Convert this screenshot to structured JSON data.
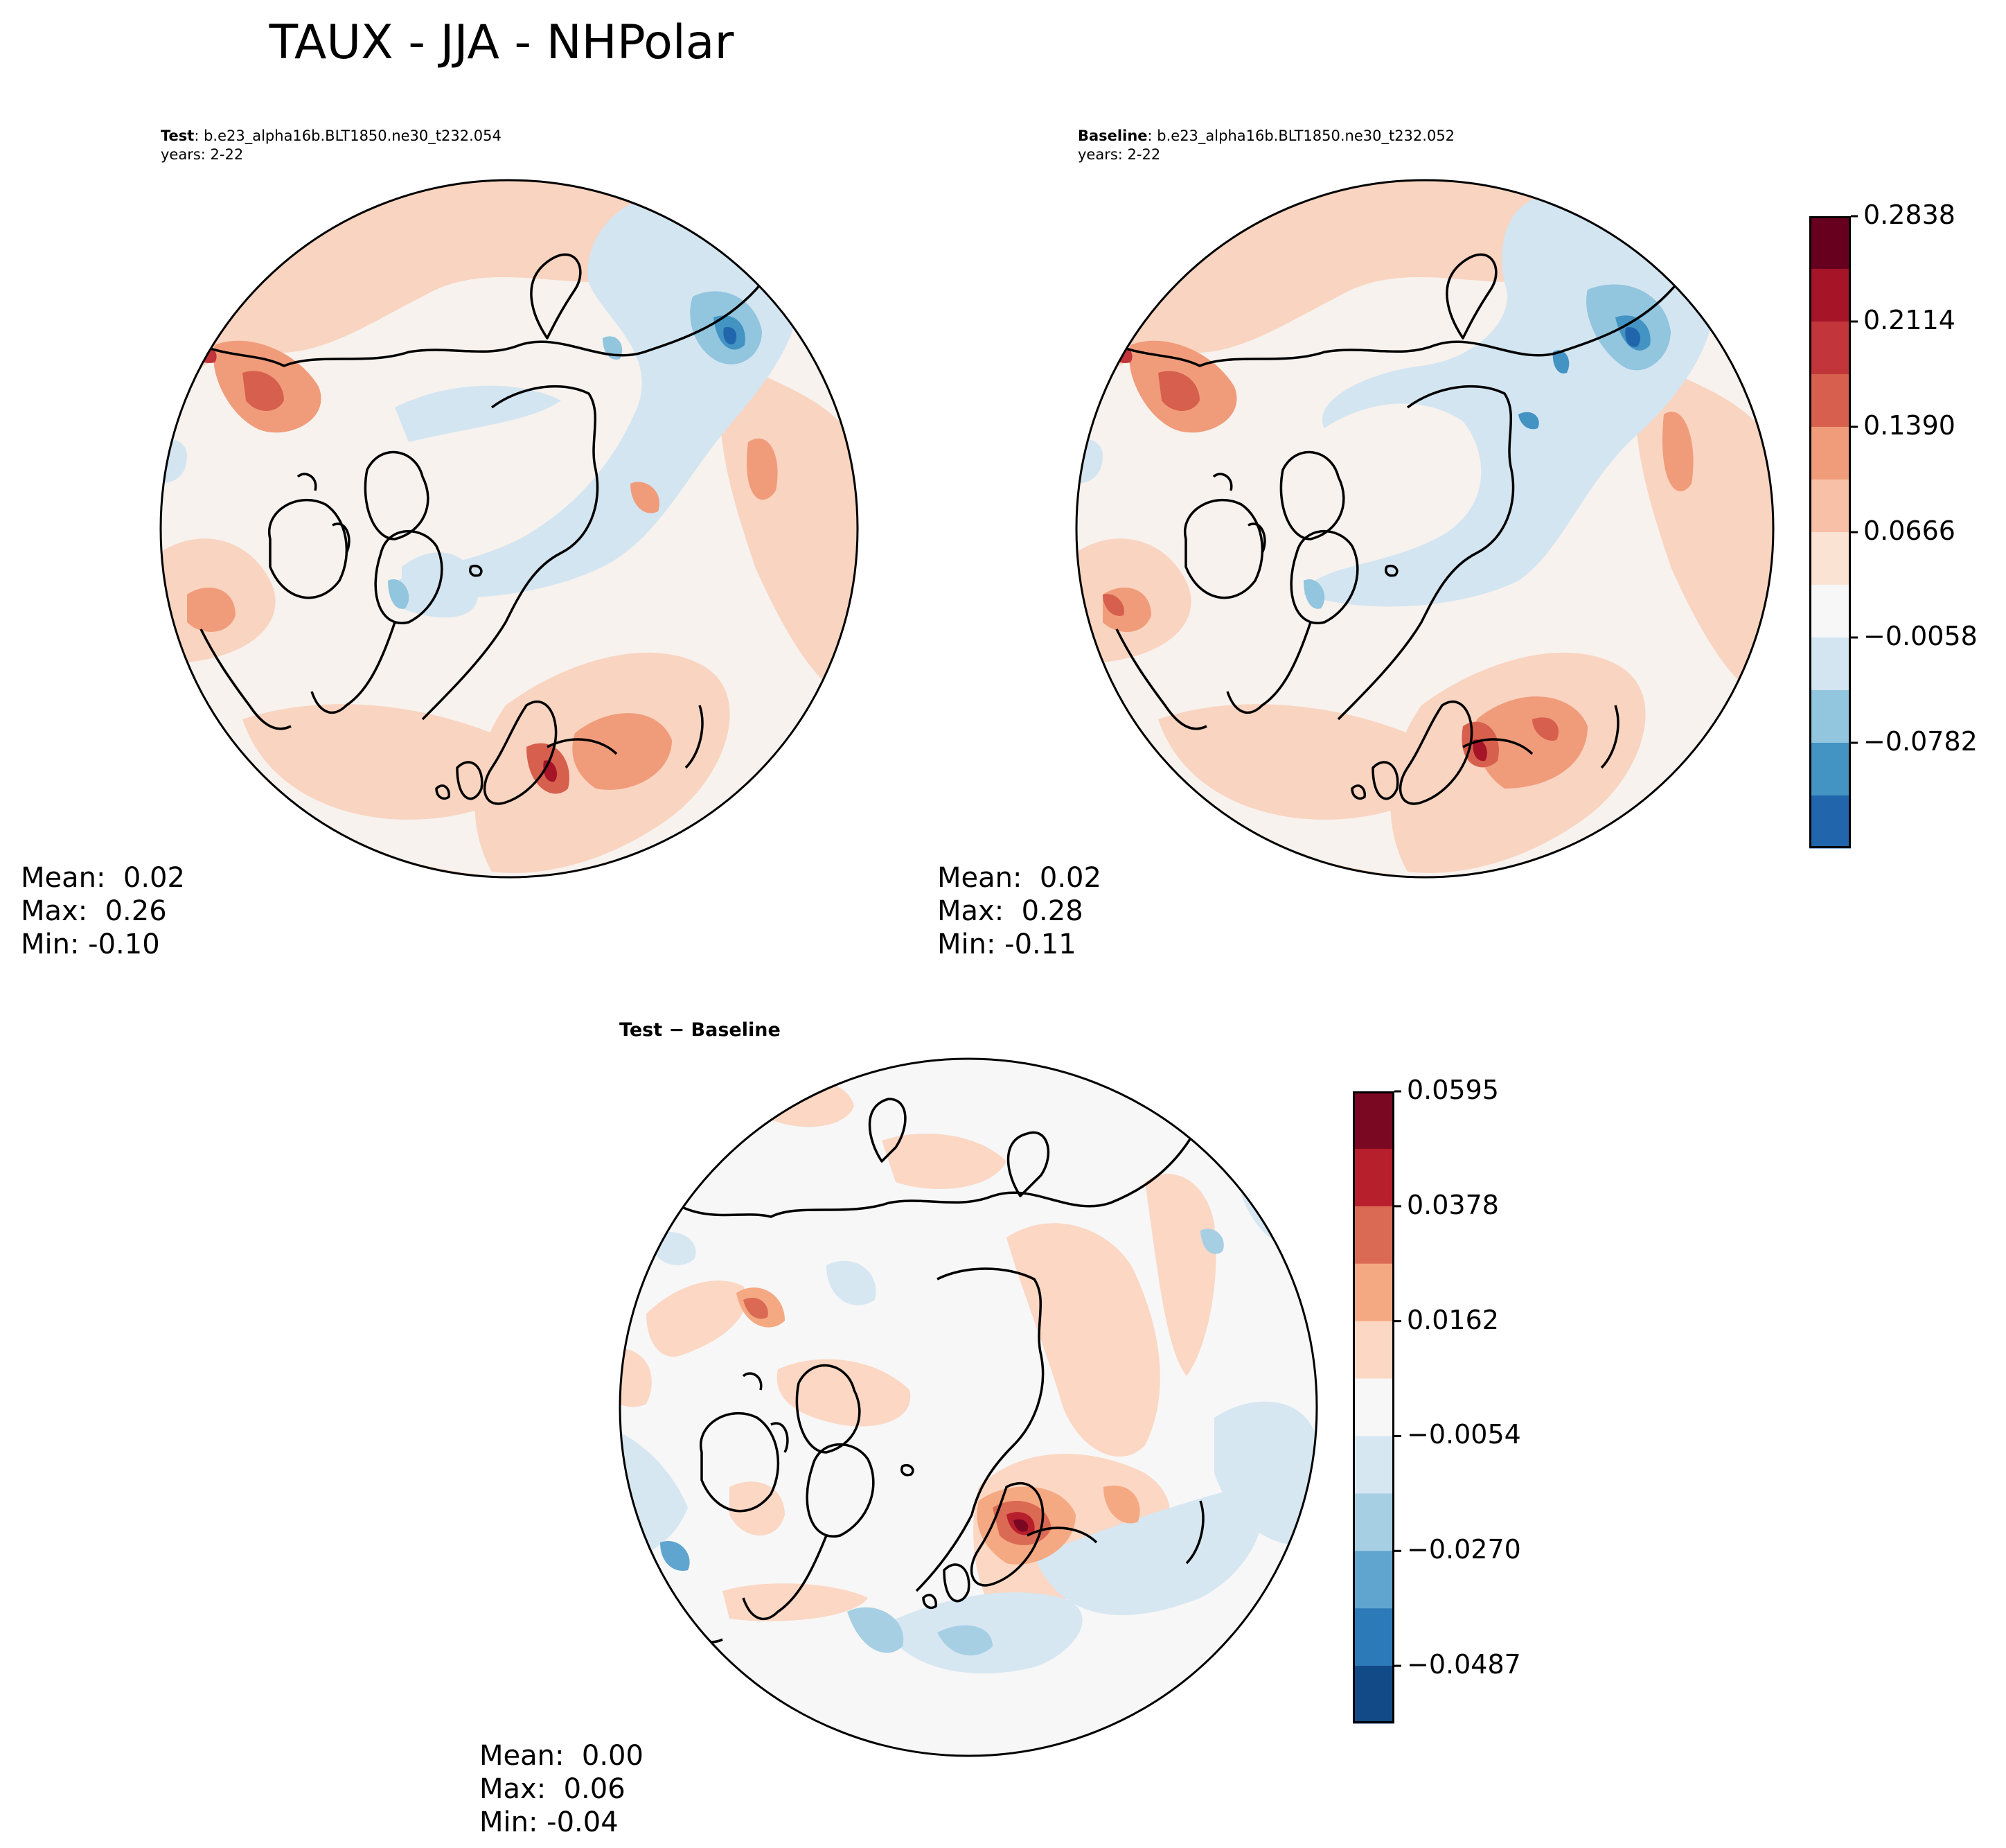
{
  "title": "TAUX - JJA - NHPolar",
  "panels": {
    "test": {
      "label": "Test",
      "case": ": b.e23_alpha16b.BLT1850.ne30_t232.054",
      "years": "years: 2-22",
      "mean": "Mean:  0.02",
      "max": "Max:  0.26",
      "min": "Min: -0.10"
    },
    "baseline": {
      "label": "Baseline",
      "case": ": b.e23_alpha16b.BLT1850.ne30_t232.052",
      "years": "years: 2-22",
      "mean": "Mean:  0.02",
      "max": "Max:  0.28",
      "min": "Min: -0.11"
    },
    "diff": {
      "label": "Test − Baseline",
      "mean": "Mean:  0.00",
      "max": "Max:  0.06",
      "min": "Min: -0.04"
    }
  },
  "colorbar_main": {
    "ticks": [
      "0.2838",
      "0.2114",
      "0.1390",
      "0.0666",
      "−0.0058",
      "−0.0782"
    ],
    "colors": [
      "#67001f",
      "#a51427",
      "#c1353b",
      "#d6604d",
      "#f09c7b",
      "#f8c0a6",
      "#fbe3d4",
      "#f7f7f7",
      "#d3e5f1",
      "#92c5de",
      "#4393c3",
      "#2166ac"
    ]
  },
  "colorbar_diff": {
    "ticks": [
      "0.0595",
      "0.0378",
      "0.0162",
      "−0.0054",
      "−0.0270",
      "−0.0487"
    ],
    "colors": [
      "#7a0822",
      "#b81f2c",
      "#db6a55",
      "#f4a983",
      "#fbd7c4",
      "#f7f7f7",
      "#d6e7f2",
      "#a6cfe4",
      "#5fa5cf",
      "#2d7ab8",
      "#124a87"
    ]
  },
  "palette": {
    "background": "#f7f2ee",
    "light_red": "#f9d4c0",
    "mid_red": "#f09c7b",
    "dark_red": "#d6604d",
    "deep_red": "#a51427",
    "light_blue": "#d3e5f1",
    "mid_blue": "#92c5de",
    "dark_blue": "#2166ac",
    "coast": "#000000"
  }
}
